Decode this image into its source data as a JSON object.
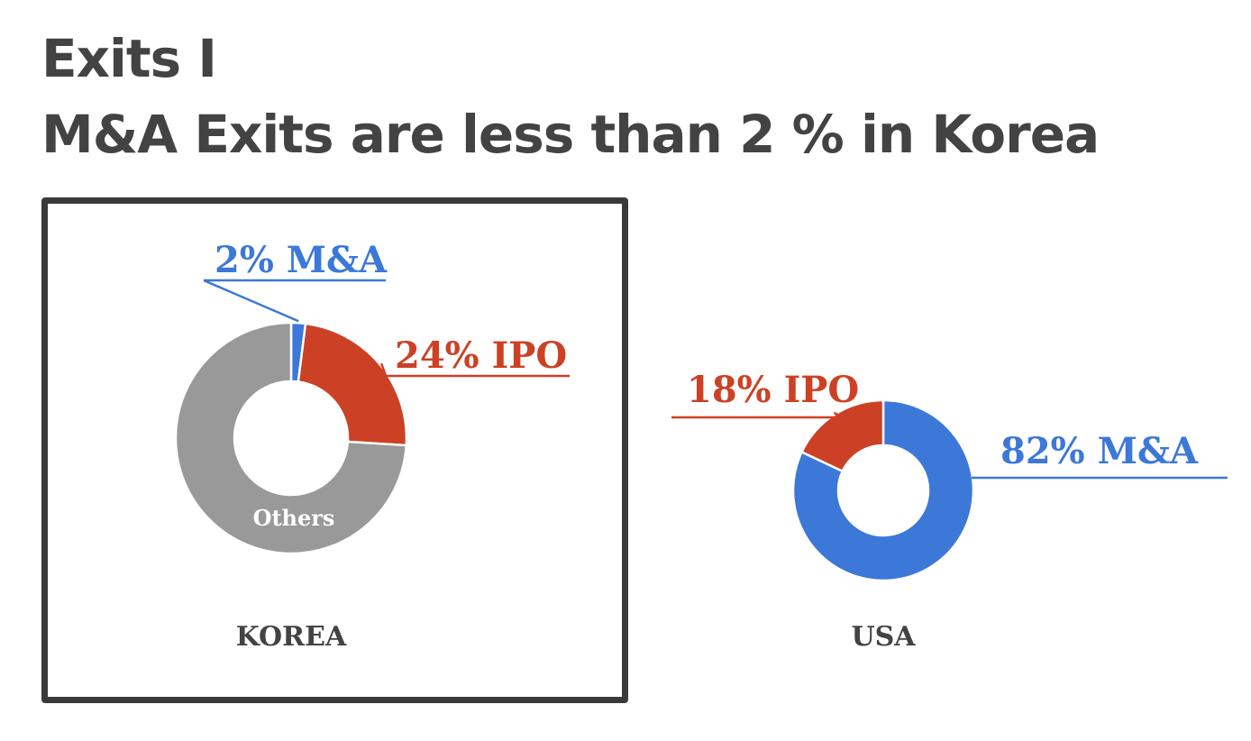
{
  "title": {
    "line1": "Exits I",
    "line2": "M&A Exits are less than 2 % in Korea"
  },
  "colors": {
    "ma": "#3c78d8",
    "ipo": "#cc4125",
    "others": "#999999",
    "others_label": "#ffffff",
    "caption": "#434343",
    "box": "#3a3a3a"
  },
  "chart_data": [
    {
      "type": "pie",
      "style": "donut",
      "caption": "KOREA",
      "highlighted_box": true,
      "slices": [
        {
          "key": "ma",
          "label": "2% M&A",
          "value": 2
        },
        {
          "key": "ipo",
          "label": "24% IPO",
          "value": 24
        },
        {
          "key": "others",
          "label": "Others",
          "value": 74
        }
      ]
    },
    {
      "type": "pie",
      "style": "donut",
      "caption": "USA",
      "highlighted_box": false,
      "slices": [
        {
          "key": "ma",
          "label": "82% M&A",
          "value": 82
        },
        {
          "key": "ipo",
          "label": "18% IPO",
          "value": 18
        }
      ]
    }
  ]
}
